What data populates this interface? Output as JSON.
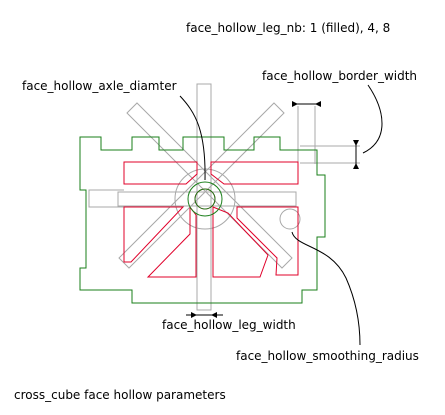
{
  "labels": {
    "leg_nb": "face_hollow_leg_nb: 1 (filled), 4, 8",
    "axle_diameter": "face_hollow_axle_diamter",
    "border_width": "face_hollow_border_width",
    "leg_width": "face_hollow_leg_width",
    "smoothing_radius": "face_hollow_smoothing_radius",
    "caption": "cross_cube face hollow parameters"
  },
  "colors": {
    "outline_green": "#1a7f1a",
    "hollow_red": "#e0002a",
    "construction_grey": "#a8a8a8",
    "annotation_black": "#000000",
    "background": "#ffffff"
  }
}
